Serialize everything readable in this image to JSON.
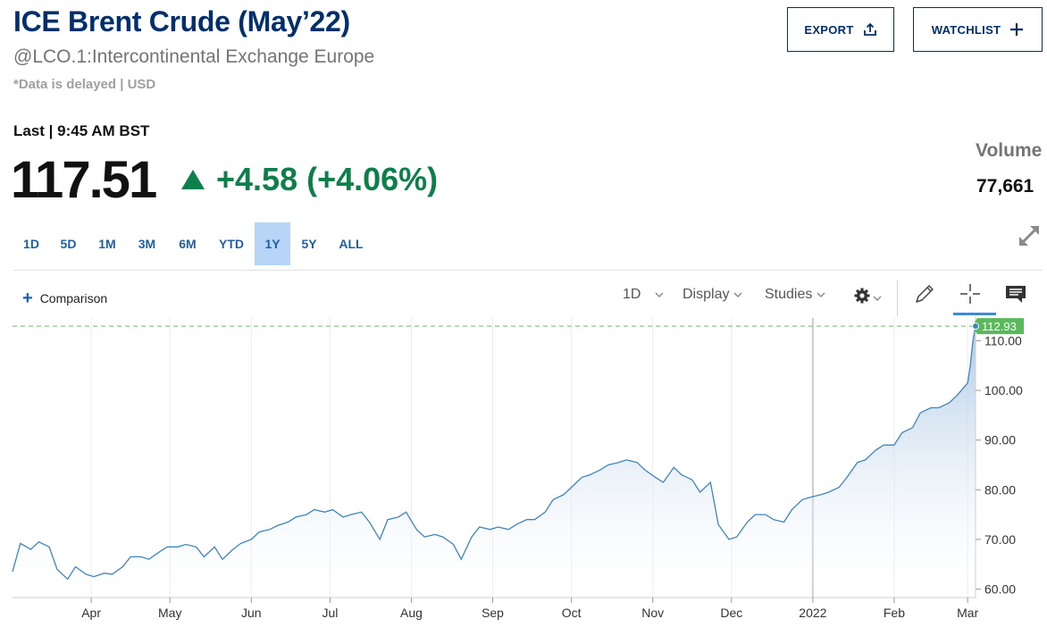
{
  "header": {
    "title": "ICE Brent Crude (May’22)",
    "subtitle": "@LCO.1:Intercontinental Exchange Europe",
    "delayed_note": "*Data is delayed | USD"
  },
  "buttons": {
    "export_label": "EXPORT",
    "watchlist_label": "WATCHLIST",
    "export_icon": "share-upload-icon",
    "watchlist_icon": "plus-icon"
  },
  "quote": {
    "last_label": "Last | 9:45 AM BST",
    "price": "117.51",
    "change": "+4.58 (+4.06%)",
    "change_color": "#0c7f4a",
    "volume_label": "Volume",
    "volume_value": "77,661"
  },
  "ranges": [
    "1D",
    "5D",
    "1M",
    "3M",
    "6M",
    "YTD",
    "1Y",
    "5Y",
    "ALL"
  ],
  "active_range": "1Y",
  "toolbar": {
    "comparison_label": "Comparison",
    "interval_label": "1D",
    "display_label": "Display",
    "studies_label": "Studies"
  },
  "chart_data": {
    "type": "area",
    "title": "",
    "xlabel": "",
    "ylabel": "",
    "ylim": [
      58.3,
      113.5
    ],
    "y_ticks": [
      60,
      70,
      80,
      90,
      100,
      110
    ],
    "y_tick_labels": [
      "60.00",
      "70.00",
      "80.00",
      "90.00",
      "100.00",
      "110.00"
    ],
    "x_tick_labels": [
      "Apr",
      "May",
      "Jun",
      "Jul",
      "Aug",
      "Sep",
      "Oct",
      "Nov",
      "Dec",
      "2022",
      "Feb",
      "Mar"
    ],
    "x_tick_dates": [
      "2021-04-01",
      "2021-05-01",
      "2021-06-01",
      "2021-07-01",
      "2021-08-01",
      "2021-09-01",
      "2021-10-01",
      "2021-11-01",
      "2021-12-01",
      "2022-01-01",
      "2022-02-01",
      "2022-03-01"
    ],
    "x_range": [
      "2021-03-02",
      "2022-03-04"
    ],
    "current_value": 112.93,
    "current_value_label": "112.93",
    "line_color": "#3d86bf",
    "fill_top_color": "#a9c5e3",
    "label_color": "#5cb85c",
    "grid": true,
    "series": [
      {
        "x": [
          "2021-03-02",
          "2021-03-05",
          "2021-03-09",
          "2021-03-12",
          "2021-03-16",
          "2021-03-19",
          "2021-03-23",
          "2021-03-26",
          "2021-03-30",
          "2021-04-02",
          "2021-04-06",
          "2021-04-09",
          "2021-04-13",
          "2021-04-16",
          "2021-04-20",
          "2021-04-23",
          "2021-04-27",
          "2021-04-30",
          "2021-05-04",
          "2021-05-07",
          "2021-05-11",
          "2021-05-14",
          "2021-05-18",
          "2021-05-21",
          "2021-05-25",
          "2021-05-28",
          "2021-06-01",
          "2021-06-04",
          "2021-06-08",
          "2021-06-11",
          "2021-06-15",
          "2021-06-18",
          "2021-06-22",
          "2021-06-25",
          "2021-06-29",
          "2021-07-02",
          "2021-07-06",
          "2021-07-09",
          "2021-07-13",
          "2021-07-16",
          "2021-07-20",
          "2021-07-23",
          "2021-07-27",
          "2021-07-30",
          "2021-08-03",
          "2021-08-06",
          "2021-08-10",
          "2021-08-13",
          "2021-08-17",
          "2021-08-20",
          "2021-08-24",
          "2021-08-27",
          "2021-08-31",
          "2021-09-03",
          "2021-09-07",
          "2021-09-10",
          "2021-09-14",
          "2021-09-17",
          "2021-09-21",
          "2021-09-24",
          "2021-09-28",
          "2021-10-01",
          "2021-10-05",
          "2021-10-08",
          "2021-10-12",
          "2021-10-15",
          "2021-10-19",
          "2021-10-22",
          "2021-10-26",
          "2021-10-29",
          "2021-11-02",
          "2021-11-05",
          "2021-11-09",
          "2021-11-12",
          "2021-11-16",
          "2021-11-19",
          "2021-11-23",
          "2021-11-26",
          "2021-11-30",
          "2021-12-03",
          "2021-12-07",
          "2021-12-10",
          "2021-12-14",
          "2021-12-17",
          "2021-12-21",
          "2021-12-24",
          "2021-12-28",
          "2021-12-31",
          "2022-01-04",
          "2022-01-07",
          "2022-01-11",
          "2022-01-14",
          "2022-01-18",
          "2022-01-21",
          "2022-01-25",
          "2022-01-28",
          "2022-02-01",
          "2022-02-04",
          "2022-02-08",
          "2022-02-11",
          "2022-02-15",
          "2022-02-18",
          "2022-02-22",
          "2022-02-25",
          "2022-03-01",
          "2022-03-02",
          "2022-03-03",
          "2022-03-04"
        ],
        "values": [
          63.5,
          69.2,
          68.0,
          69.5,
          68.5,
          64.0,
          62.0,
          64.5,
          63.0,
          62.5,
          63.2,
          63.0,
          64.5,
          66.5,
          66.5,
          66.0,
          67.5,
          68.5,
          68.5,
          69.0,
          68.5,
          66.5,
          68.5,
          66.0,
          68.0,
          69.2,
          70.0,
          71.5,
          72.0,
          72.8,
          73.5,
          74.5,
          75.0,
          76.0,
          75.5,
          76.0,
          74.5,
          75.0,
          75.5,
          73.5,
          70.0,
          74.0,
          74.5,
          75.5,
          72.0,
          70.5,
          71.0,
          70.5,
          69.0,
          66.0,
          70.5,
          72.5,
          72.0,
          72.5,
          72.0,
          73.0,
          74.0,
          74.0,
          75.5,
          78.0,
          79.0,
          80.5,
          82.5,
          83.0,
          84.0,
          85.0,
          85.5,
          86.0,
          85.5,
          84.0,
          82.5,
          81.5,
          84.5,
          83.0,
          82.0,
          79.5,
          81.5,
          73.0,
          70.0,
          70.5,
          73.5,
          75.0,
          75.0,
          74.0,
          73.5,
          76.0,
          78.0,
          78.5,
          79.0,
          79.5,
          80.5,
          82.5,
          85.5,
          86.0,
          88.0,
          89.0,
          89.0,
          91.5,
          92.5,
          95.5,
          96.5,
          96.5,
          97.5,
          99.0,
          101.5,
          105.0,
          110.0,
          112.93
        ]
      }
    ]
  }
}
